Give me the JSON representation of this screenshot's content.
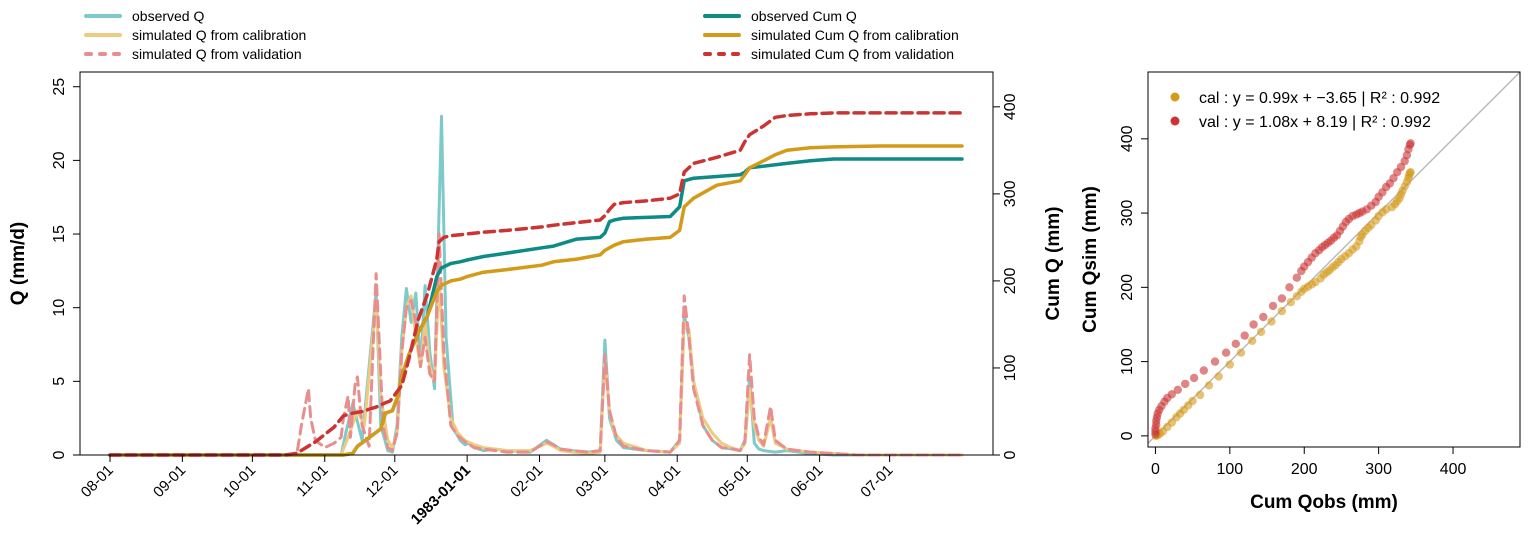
{
  "legend_left": [
    {
      "label": "observed Q",
      "color": "#7ECACA",
      "style": "solid"
    },
    {
      "label": "simulated Q from calibration",
      "color": "#EDCB80",
      "style": "solid"
    },
    {
      "label": "simulated Q from validation",
      "color": "#E88E8E",
      "style": "dashed"
    }
  ],
  "legend_right": [
    {
      "label": "observed Cum Q",
      "color": "#0E8A87",
      "style": "solid"
    },
    {
      "label": "simulated Cum Q from calibration",
      "color": "#D49A1A",
      "style": "solid"
    },
    {
      "label": "simulated Cum Q from validation",
      "color": "#CC3333",
      "style": "dashed"
    }
  ],
  "chart_data": [
    {
      "type": "line",
      "ylabel": "Q (mm/d)",
      "y2label": "Cum Q (mm)",
      "ylim": [
        0,
        26
      ],
      "y2lim": [
        0,
        440
      ],
      "yticks": [
        0,
        5,
        10,
        15,
        20,
        25
      ],
      "y2ticks": [
        0,
        100,
        200,
        300,
        400
      ],
      "xlim": [
        0,
        365
      ],
      "xticks": [
        {
          "label": "08-01",
          "day": 0
        },
        {
          "label": "09-01",
          "day": 31
        },
        {
          "label": "10-01",
          "day": 61
        },
        {
          "label": "11-01",
          "day": 92
        },
        {
          "label": "12-01",
          "day": 122
        },
        {
          "label": "1983-01-01",
          "day": 153,
          "bold": true
        },
        {
          "label": "02-01",
          "day": 184
        },
        {
          "label": "03-01",
          "day": 212
        },
        {
          "label": "04-01",
          "day": 243
        },
        {
          "label": "05-01",
          "day": 273
        },
        {
          "label": "06-01",
          "day": 304
        },
        {
          "label": "07-01",
          "day": 334
        }
      ],
      "series": [
        {
          "name": "observed Q",
          "axis": "left",
          "color": "#7ECACA",
          "dash": false,
          "width": 3,
          "x": [
            0,
            80,
            90,
            99,
            101,
            104,
            108,
            114,
            116,
            119,
            121,
            123,
            125,
            127,
            129,
            131,
            133,
            135,
            137,
            139,
            142,
            144,
            147,
            149,
            150,
            152,
            154,
            156,
            158,
            160,
            165,
            170,
            180,
            187,
            190,
            193,
            198,
            205,
            210,
            212,
            214,
            217,
            220,
            230,
            240,
            244,
            246,
            248,
            250,
            254,
            258,
            262,
            267,
            270,
            272,
            274,
            276,
            278,
            280,
            285,
            290,
            300,
            310,
            320,
            365
          ],
          "y": [
            0,
            0,
            0,
            0,
            1.5,
            3.5,
            1,
            11,
            2,
            0.3,
            0.2,
            2,
            8,
            11.3,
            9,
            11,
            6,
            11.5,
            7,
            4.5,
            23,
            8,
            1.8,
            1.3,
            1,
            0.7,
            0.8,
            0.5,
            0.4,
            0.3,
            0.4,
            0.3,
            0.2,
            1,
            0.7,
            0.4,
            0.3,
            0.2,
            0.3,
            7.8,
            2.5,
            1,
            0.5,
            0.3,
            0.2,
            1,
            9.5,
            8,
            5,
            2,
            1,
            0.5,
            0.4,
            0.3,
            1,
            5.2,
            0.8,
            0.4,
            0.3,
            0.2,
            0.3,
            0.1,
            0,
            0,
            0
          ]
        },
        {
          "name": "simulated Q from calibration",
          "axis": "left",
          "color": "#EDCB80",
          "dash": false,
          "width": 3,
          "x": [
            0,
            80,
            90,
            99,
            102,
            106,
            109,
            114,
            116,
            119,
            121,
            123,
            125,
            127,
            129,
            131,
            133,
            135,
            137,
            139,
            141,
            143,
            146,
            149,
            152,
            156,
            160,
            165,
            170,
            180,
            187,
            190,
            193,
            198,
            205,
            210,
            212,
            214,
            216,
            220,
            230,
            240,
            244,
            246,
            248,
            250,
            254,
            258,
            262,
            266,
            270,
            272,
            274,
            276,
            278,
            280,
            283,
            285,
            290,
            300,
            310,
            320,
            365
          ],
          "y": [
            0,
            0,
            0,
            0,
            1.2,
            3,
            2,
            10.5,
            4,
            1,
            0.5,
            1.5,
            7,
            10,
            10.8,
            8,
            6,
            9,
            6,
            5,
            12,
            6,
            2.5,
            1.5,
            1,
            0.7,
            0.5,
            0.4,
            0.3,
            0.3,
            0.8,
            0.6,
            0.3,
            0.2,
            0.1,
            0.2,
            6.5,
            3,
            1.5,
            0.8,
            0.3,
            0.2,
            0.8,
            9,
            8.5,
            5,
            2.5,
            1.5,
            0.8,
            0.5,
            0.3,
            0.8,
            4.5,
            2,
            1,
            0.6,
            2.5,
            0.8,
            0.4,
            0.2,
            0.1,
            0,
            0
          ]
        },
        {
          "name": "simulated Q from validation",
          "axis": "left",
          "color": "#E88E8E",
          "dash": true,
          "width": 3,
          "x": [
            0,
            75,
            80,
            82,
            85,
            86,
            88,
            92,
            96,
            99,
            100,
            102,
            103,
            105,
            106,
            107,
            108,
            111,
            114,
            117,
            119,
            121,
            123,
            125,
            127,
            129,
            131,
            133,
            135,
            137,
            139,
            141,
            143,
            146,
            149,
            152,
            156,
            160,
            165,
            170,
            180,
            187,
            190,
            193,
            198,
            205,
            210,
            212,
            214,
            217,
            220,
            230,
            240,
            244,
            246,
            248,
            250,
            254,
            258,
            262,
            267,
            270,
            272,
            274,
            276,
            278,
            280,
            283,
            285,
            290,
            300,
            310,
            320,
            365
          ],
          "y": [
            0,
            0,
            0,
            2,
            4.5,
            2.5,
            1,
            0.5,
            0.8,
            1.2,
            2.5,
            4,
            1.2,
            4.8,
            5.3,
            3.5,
            2,
            0.6,
            12.3,
            2,
            0.5,
            0.3,
            1.5,
            7,
            10,
            10.5,
            9,
            6,
            8,
            5.5,
            5,
            15,
            7,
            2,
            1.3,
            0.9,
            0.5,
            0.4,
            0.3,
            0.2,
            0.2,
            0.9,
            0.7,
            0.4,
            0.3,
            0.2,
            0.3,
            6.8,
            3,
            1.2,
            0.6,
            0.3,
            0.2,
            1,
            10.8,
            8,
            4.5,
            2,
            1,
            0.5,
            0.4,
            0.3,
            0.9,
            6.8,
            2.5,
            1.2,
            0.7,
            3.3,
            1,
            0.4,
            0.2,
            0.1,
            0,
            0
          ]
        },
        {
          "name": "observed Cum Q",
          "axis": "right",
          "color": "#0E8A87",
          "dash": false,
          "width": 3.5,
          "x": [
            0,
            90,
            100,
            104,
            106,
            112,
            116,
            118,
            120,
            121,
            123,
            125,
            128,
            132,
            136,
            140,
            142,
            146,
            150,
            153,
            160,
            170,
            185,
            190,
            200,
            205,
            210,
            212,
            214,
            216,
            220,
            230,
            240,
            244,
            246,
            250,
            260,
            270,
            272,
            274,
            290,
            300,
            310,
            320,
            330,
            365
          ],
          "y": [
            0,
            0,
            0,
            2,
            10,
            22,
            30,
            48,
            50,
            51,
            65,
            90,
            115,
            140,
            160,
            205,
            215,
            220,
            222,
            224,
            228,
            232,
            238,
            240,
            248,
            249,
            250,
            255,
            268,
            270,
            272,
            273,
            274,
            285,
            315,
            318,
            320,
            322,
            325,
            330,
            335,
            338,
            340,
            340,
            340,
            340
          ]
        },
        {
          "name": "simulated Cum Q from calibration",
          "axis": "right",
          "color": "#D49A1A",
          "dash": false,
          "width": 3.5,
          "x": [
            0,
            90,
            100,
            104,
            106,
            112,
            116,
            118,
            120,
            121,
            123,
            125,
            128,
            132,
            136,
            140,
            142,
            146,
            150,
            153,
            160,
            170,
            185,
            190,
            200,
            210,
            212,
            214,
            216,
            220,
            230,
            240,
            244,
            246,
            250,
            260,
            270,
            272,
            274,
            280,
            285,
            290,
            300,
            310,
            330,
            365
          ],
          "y": [
            0,
            0,
            0,
            2,
            10,
            22,
            30,
            48,
            50,
            51,
            65,
            90,
            115,
            140,
            160,
            188,
            195,
            200,
            202,
            205,
            210,
            213,
            218,
            222,
            225,
            230,
            235,
            238,
            241,
            245,
            248,
            250,
            258,
            285,
            295,
            310,
            315,
            322,
            330,
            338,
            345,
            350,
            353,
            354,
            355,
            355
          ]
        },
        {
          "name": "simulated Cum Q from validation",
          "axis": "right",
          "color": "#CC3333",
          "dash": true,
          "width": 3.5,
          "x": [
            0,
            75,
            80,
            88,
            96,
            100,
            104,
            108,
            114,
            118,
            120,
            125,
            128,
            132,
            136,
            140,
            141,
            143,
            146,
            150,
            153,
            160,
            170,
            185,
            190,
            200,
            210,
            212,
            214,
            216,
            220,
            230,
            240,
            244,
            246,
            250,
            260,
            270,
            272,
            274,
            280,
            285,
            290,
            300,
            310,
            330,
            365
          ],
          "y": [
            0,
            0,
            2,
            15,
            32,
            45,
            48,
            50,
            55,
            60,
            62,
            80,
            110,
            155,
            185,
            225,
            245,
            250,
            252,
            253,
            254,
            256,
            258,
            262,
            264,
            267,
            270,
            275,
            282,
            288,
            290,
            292,
            295,
            300,
            325,
            335,
            342,
            350,
            360,
            368,
            378,
            388,
            390,
            392,
            393,
            393,
            393
          ]
        }
      ]
    },
    {
      "type": "scatter",
      "xlabel": "Cum Qobs (mm)",
      "ylabel": "Cum Qsim (mm)",
      "xlim": [
        -10,
        490
      ],
      "ylim": [
        -15,
        490
      ],
      "xticks": [
        0,
        100,
        200,
        300,
        400
      ],
      "yticks": [
        0,
        100,
        200,
        300,
        400
      ],
      "identity_line": true,
      "series": [
        {
          "name": "cal",
          "legend": "cal : y = 0.99x + −3.65 | R² : 0.992",
          "color": "#D49A1A",
          "x": [
            1,
            3,
            6,
            10,
            16,
            22,
            28,
            33,
            38,
            44,
            50,
            60,
            72,
            85,
            100,
            115,
            130,
            142,
            156,
            170,
            182,
            190,
            196,
            200,
            205,
            210,
            215,
            222,
            226,
            230,
            234,
            238,
            242,
            246,
            250,
            255,
            260,
            265,
            270,
            274,
            276,
            278,
            282,
            286,
            290,
            296,
            300,
            305,
            310,
            318,
            322,
            325,
            328,
            330,
            332,
            335,
            338,
            340,
            341,
            342,
            343
          ],
          "y": [
            0,
            1,
            3,
            6,
            12,
            18,
            25,
            30,
            35,
            41,
            47,
            55,
            68,
            80,
            96,
            112,
            128,
            140,
            154,
            168,
            180,
            188,
            194,
            198,
            201,
            204,
            207,
            212,
            217,
            220,
            223,
            227,
            230,
            234,
            238,
            242,
            246,
            251,
            255,
            262,
            268,
            271,
            276,
            280,
            284,
            290,
            296,
            301,
            305,
            308,
            312,
            316,
            320,
            325,
            330,
            336,
            342,
            347,
            351,
            354,
            355
          ]
        },
        {
          "name": "val",
          "legend": "val : y = 1.08x + 8.19 | R² : 0.992",
          "color": "#CC3333",
          "x": [
            0,
            0,
            0,
            1,
            1,
            2,
            3,
            5,
            8,
            12,
            16,
            22,
            30,
            40,
            52,
            65,
            80,
            95,
            108,
            120,
            132,
            145,
            158,
            170,
            180,
            190,
            196,
            200,
            205,
            210,
            215,
            220,
            224,
            228,
            232,
            236,
            240,
            244,
            248,
            252,
            256,
            260,
            265,
            270,
            274,
            278,
            284,
            290,
            296,
            300,
            305,
            310,
            315,
            320,
            325,
            330,
            335,
            338,
            340,
            342,
            343
          ],
          "y": [
            2,
            6,
            10,
            15,
            20,
            25,
            30,
            35,
            40,
            46,
            51,
            56,
            62,
            70,
            78,
            88,
            100,
            112,
            124,
            135,
            150,
            160,
            175,
            185,
            200,
            213,
            222,
            228,
            234,
            240,
            246,
            250,
            254,
            257,
            260,
            263,
            267,
            270,
            276,
            282,
            288,
            292,
            296,
            298,
            300,
            302,
            305,
            310,
            315,
            322,
            328,
            335,
            340,
            347,
            355,
            362,
            370,
            378,
            386,
            392,
            394
          ]
        }
      ]
    }
  ]
}
